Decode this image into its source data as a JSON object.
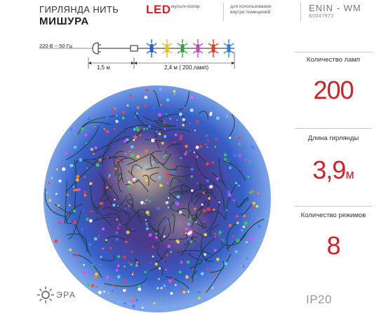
{
  "header": {
    "title_line1": "ГИРЛЯНДА НИТЬ",
    "title_line2": "МИШУРА",
    "led": "LED",
    "led_note": "мульти-колор",
    "use_note": "для использования внутри помещений",
    "model": "ENIN - WM",
    "sku": "Б0047972"
  },
  "diagram": {
    "voltage": "220 В ~ 50 Гц",
    "cable_length": "1,5 м",
    "garland_length": "2,4 м ( 200 ламп)",
    "led_colors": [
      "#1f5bd6",
      "#e8c21a",
      "#27a83c",
      "#d63ac8",
      "#e83a1c",
      "#2a7de8"
    ]
  },
  "specs": [
    {
      "label": "Количество ламп",
      "value": "200",
      "unit": ""
    },
    {
      "label": "Длина гирлянды",
      "value": "3,9",
      "unit": "м"
    },
    {
      "label": "Количество режимов",
      "value": "8",
      "unit": ""
    }
  ],
  "ip_rating": "IP20",
  "brand": "ЭРА",
  "colors": {
    "accent": "#d61f26",
    "separator": "#c8c8c8"
  }
}
